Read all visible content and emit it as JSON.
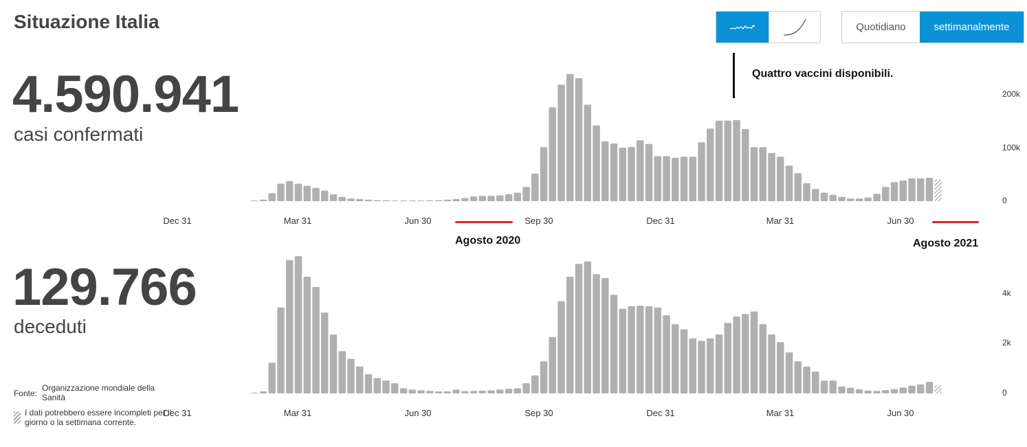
{
  "page": {
    "title": "Situazione Italia"
  },
  "controls": {
    "scale": [
      {
        "name": "linear-scale-button",
        "icon": "wave-line-icon",
        "active": true
      },
      {
        "name": "cumulative-scale-button",
        "icon": "curve-line-icon",
        "active": false
      }
    ],
    "period": [
      {
        "name": "daily-button",
        "label": "Quotidiano",
        "active": false
      },
      {
        "name": "weekly-button",
        "label": "settimanalmente",
        "active": true
      }
    ]
  },
  "cases": {
    "total": "4.590.941",
    "label": "casi confermati"
  },
  "deaths": {
    "total": "129.766",
    "label": "deceduti"
  },
  "annotations": {
    "vaccines": "Quattro vaccini disponibili.",
    "aug2020": "Agosto 2020",
    "aug2021": "Agosto 2021"
  },
  "source": {
    "prefix": "Fonte:",
    "name": "Organizzazione mondiale della Sanità",
    "note": "I dati potrebbero essere incompleti per il giorno o la settimana corrente."
  },
  "colors": {
    "bar": "#b0b0b0",
    "accent": "#0b91d6",
    "highlight": "#d9262c"
  },
  "chart_data": [
    {
      "type": "bar",
      "name": "casi confermati",
      "x_ticks": [
        "Dec 31",
        "Mar 31",
        "Jun 30",
        "Sep 30",
        "Dec 31",
        "Mar 31",
        "Jun 30"
      ],
      "y_ticks": [
        "0",
        "100k",
        "200k"
      ],
      "ylim": [
        0,
        250000
      ],
      "values": [
        500,
        3000,
        15000,
        33000,
        38000,
        33000,
        29000,
        25000,
        20000,
        13000,
        8000,
        5000,
        4000,
        3000,
        2000,
        1500,
        1000,
        1000,
        1000,
        1000,
        1500,
        2000,
        3000,
        4000,
        6000,
        9000,
        10000,
        10000,
        11000,
        13000,
        16000,
        27000,
        52000,
        102000,
        177000,
        220000,
        240000,
        232000,
        182000,
        143000,
        113000,
        109000,
        101000,
        102000,
        115000,
        108000,
        85000,
        85000,
        82000,
        84000,
        84000,
        111000,
        137000,
        152000,
        152000,
        153000,
        136000,
        102000,
        102000,
        91000,
        84000,
        67000,
        53000,
        34000,
        23000,
        16000,
        12000,
        8000,
        5000,
        5000,
        7000,
        14000,
        27000,
        36000,
        39000,
        43000,
        43000,
        44000,
        41000
      ],
      "partial_last": true
    },
    {
      "type": "bar",
      "name": "deceduti",
      "x_ticks": [
        "Dec 31",
        "Mar 31",
        "Jun 30",
        "Sep 30",
        "Dec 31",
        "Mar 31",
        "Jun 30"
      ],
      "y_ticks": [
        "0",
        "2k",
        "4k"
      ],
      "ylim": [
        0,
        5300
      ],
      "values": [
        30,
        80,
        1200,
        3350,
        5200,
        5350,
        4550,
        4150,
        3150,
        2300,
        1650,
        1350,
        1050,
        750,
        600,
        500,
        400,
        200,
        150,
        120,
        100,
        80,
        80,
        150,
        90,
        100,
        110,
        120,
        150,
        180,
        200,
        400,
        700,
        1250,
        2200,
        3600,
        4550,
        5050,
        5150,
        4650,
        4500,
        3850,
        3300,
        3400,
        3420,
        3400,
        3350,
        3050,
        2700,
        2500,
        2150,
        2050,
        2150,
        2300,
        2750,
        3000,
        3100,
        3200,
        2700,
        2300,
        2000,
        1600,
        1250,
        1050,
        850,
        500,
        500,
        270,
        220,
        160,
        110,
        100,
        130,
        170,
        230,
        300,
        350,
        450,
        300
      ],
      "partial_last": true
    }
  ]
}
